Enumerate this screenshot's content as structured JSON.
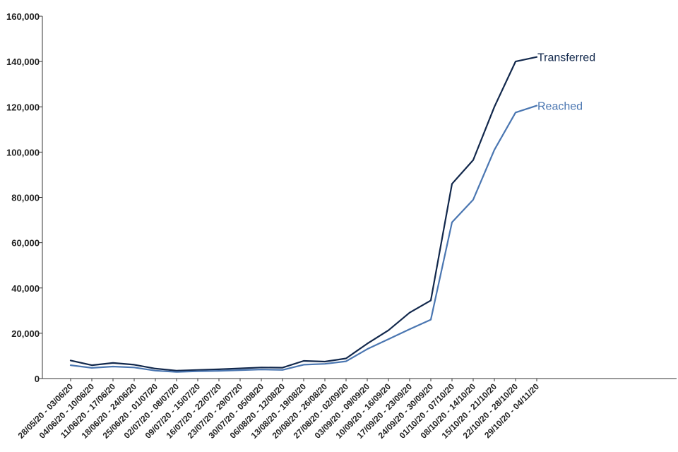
{
  "chart_data": {
    "type": "line",
    "title": "",
    "xlabel": "",
    "ylabel": "",
    "ylim": [
      0,
      160000
    ],
    "y_ticks": [
      0,
      20000,
      40000,
      60000,
      80000,
      100000,
      120000,
      140000,
      160000
    ],
    "y_tick_labels": [
      "0",
      "20,000",
      "40,000",
      "60,000",
      "80,000",
      "100,000",
      "120,000",
      "140,000",
      "160,000"
    ],
    "grid": false,
    "legend": "inline labels at line ends",
    "categories": [
      "28/05/20 - 03/06/20",
      "04/06/20 - 10/06/20",
      "11/06/20 - 17/06/20",
      "18/06/20 - 24/06/20",
      "25/06/20 - 01/07/20",
      "02/07/20 - 08/07/20",
      "09/07/20 - 15/07/20",
      "16/07/20 - 22/07/20",
      "23/07/20 - 29/07/20",
      "30/07/20 - 05/08/20",
      "06/08/20 - 12/08/20",
      "13/08/20 - 19/08/20",
      "20/08/20 - 26/08/20",
      "27/08/20 - 02/09/20",
      "03/09/20 - 09/09/20",
      "10/09/20 - 16/09/20",
      "17/09/20 - 23/09/20",
      "24/09/20 - 30/09/20",
      "01/10/20 - 07/10/20",
      "08/10/20 - 14/10/20",
      "15/10/20 - 21/10/20",
      "22/10/20 - 28/10/20",
      "29/10/20 - 04/11/20"
    ],
    "series": [
      {
        "name": "Transferred",
        "color": "#12284c",
        "values": [
          8000,
          5900,
          6900,
          6100,
          4400,
          3500,
          3800,
          4100,
          4500,
          4900,
          4800,
          7800,
          7500,
          8900,
          15400,
          21300,
          29100,
          34500,
          86000,
          96500,
          120000,
          140000,
          142000
        ]
      },
      {
        "name": "Reached",
        "color": "#4a76b1",
        "values": [
          5900,
          4700,
          5300,
          4900,
          3500,
          2900,
          3200,
          3400,
          3700,
          4000,
          3800,
          6100,
          6500,
          7600,
          13000,
          17400,
          21800,
          26000,
          69000,
          79000,
          101000,
          117500,
          120500
        ]
      }
    ]
  }
}
